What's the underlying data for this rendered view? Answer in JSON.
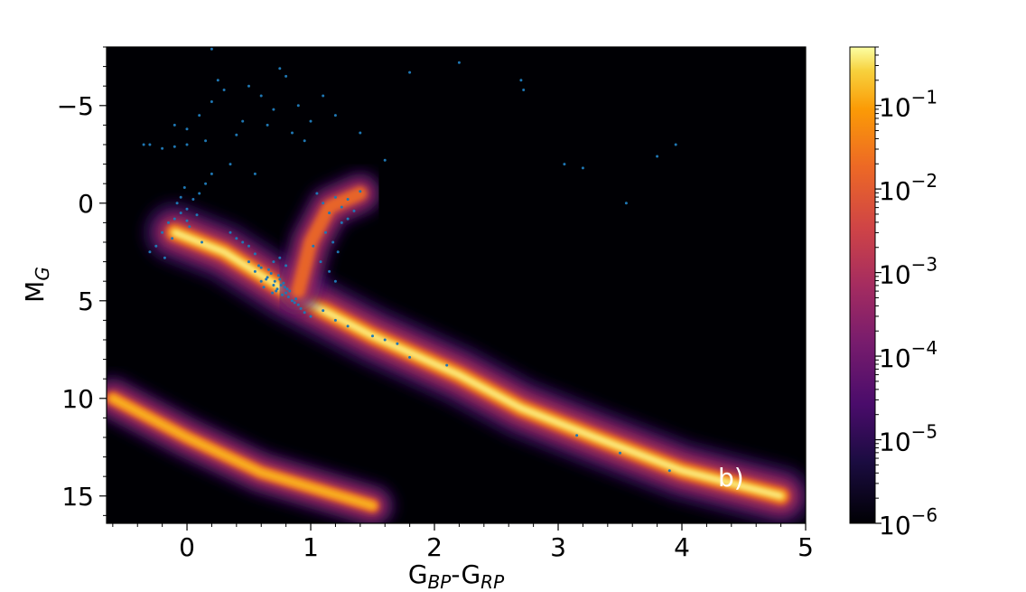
{
  "chart_data": {
    "type": "heatmap",
    "title": "",
    "xlabel": "G",
    "xlabel_subs": [
      "BP",
      "RP"
    ],
    "xlabel_sep": "-",
    "ylabel": "M",
    "ylabel_sub": "G",
    "xlim": [
      -0.65,
      5.0
    ],
    "ylim": [
      16.4,
      -8.0
    ],
    "y_inverted": true,
    "x_ticks": [
      0,
      1,
      2,
      3,
      4,
      5
    ],
    "x_tick_labels": [
      "0",
      "1",
      "2",
      "3",
      "4",
      "5"
    ],
    "y_ticks": [
      -5,
      0,
      5,
      10,
      15
    ],
    "y_tick_labels": [
      "−5",
      "0",
      "5",
      "10",
      "15"
    ],
    "panel_label": "b)",
    "colormap": "inferno",
    "background_color": "#000004",
    "overlay_color": "#1f77b4",
    "colorbar": {
      "scale": "log",
      "range": [
        1e-06,
        0.5
      ],
      "ticks": [
        {
          "value": 1e-06,
          "base": "10",
          "exp": "−6"
        },
        {
          "value": 1e-05,
          "base": "10",
          "exp": "−5"
        },
        {
          "value": 0.0001,
          "base": "10",
          "exp": "−4"
        },
        {
          "value": 0.001,
          "base": "10",
          "exp": "−3"
        },
        {
          "value": 0.01,
          "base": "10",
          "exp": "−2"
        },
        {
          "value": 0.1,
          "base": "10",
          "exp": "−1"
        }
      ]
    },
    "density_ridges": [
      {
        "name": "main-sequence",
        "points": [
          [
            -0.1,
            1.5
          ],
          [
            0.3,
            2.5
          ],
          [
            0.8,
            4.5
          ],
          [
            1.5,
            6.8
          ],
          [
            2.2,
            8.8
          ],
          [
            2.7,
            10.5
          ],
          [
            3.3,
            12.0
          ],
          [
            4.0,
            13.7
          ],
          [
            4.8,
            15.0
          ]
        ],
        "peak": 0.5
      },
      {
        "name": "giant-branch",
        "points": [
          [
            0.9,
            4.5
          ],
          [
            1.0,
            2.0
          ],
          [
            1.15,
            0.2
          ],
          [
            1.4,
            -0.5
          ]
        ],
        "peak": 0.01
      },
      {
        "name": "white-dwarf-sequence",
        "points": [
          [
            -0.6,
            10.0
          ],
          [
            0.0,
            12.0
          ],
          [
            0.6,
            13.8
          ],
          [
            1.5,
            15.5
          ]
        ],
        "peak": 0.03
      }
    ],
    "scatter_points": [
      [
        -0.05,
        0.5
      ],
      [
        -0.1,
        0.8
      ],
      [
        0.0,
        0.3
      ],
      [
        -0.15,
        1.0
      ],
      [
        0.05,
        -0.2
      ],
      [
        -0.2,
        1.5
      ],
      [
        0.1,
        -0.5
      ],
      [
        -0.08,
        0.0
      ],
      [
        0.02,
        1.2
      ],
      [
        -0.12,
        1.8
      ],
      [
        0.15,
        -1.0
      ],
      [
        -0.25,
        2.2
      ],
      [
        0.0,
        0.9
      ],
      [
        -0.05,
        -0.3
      ],
      [
        0.08,
        0.6
      ],
      [
        -0.3,
        2.5
      ],
      [
        0.2,
        -1.5
      ],
      [
        -0.18,
        2.8
      ],
      [
        0.12,
        2.0
      ],
      [
        -0.02,
        -0.8
      ],
      [
        0.5,
        3.0
      ],
      [
        0.55,
        3.5
      ],
      [
        0.6,
        4.0
      ],
      [
        0.65,
        3.8
      ],
      [
        0.7,
        4.2
      ],
      [
        0.72,
        4.5
      ],
      [
        0.75,
        3.9
      ],
      [
        0.78,
        4.1
      ],
      [
        0.8,
        4.6
      ],
      [
        0.68,
        3.6
      ],
      [
        0.62,
        4.3
      ],
      [
        0.58,
        3.2
      ],
      [
        0.82,
        4.8
      ],
      [
        0.85,
        5.0
      ],
      [
        0.88,
        4.9
      ],
      [
        0.9,
        5.2
      ],
      [
        0.73,
        4.4
      ],
      [
        0.77,
        4.7
      ],
      [
        0.66,
        3.4
      ],
      [
        0.71,
        4.0
      ],
      [
        0.74,
        3.7
      ],
      [
        0.79,
        4.3
      ],
      [
        0.83,
        4.5
      ],
      [
        0.6,
        3.3
      ],
      [
        0.64,
        3.9
      ],
      [
        0.69,
        4.6
      ],
      [
        0.76,
        4.2
      ],
      [
        0.81,
        4.4
      ],
      [
        0.87,
        5.1
      ],
      [
        0.92,
        5.4
      ],
      [
        0.95,
        5.6
      ],
      [
        1.0,
        5.8
      ],
      [
        0.7,
        3.0
      ],
      [
        0.75,
        2.8
      ],
      [
        0.8,
        3.2
      ],
      [
        0.55,
        2.6
      ],
      [
        0.5,
        2.2
      ],
      [
        0.45,
        2.0
      ],
      [
        0.4,
        1.8
      ],
      [
        0.35,
        1.5
      ],
      [
        1.05,
        -0.5
      ],
      [
        1.1,
        0.0
      ],
      [
        1.15,
        0.5
      ],
      [
        1.2,
        -0.3
      ],
      [
        1.25,
        0.2
      ],
      [
        1.3,
        0.8
      ],
      [
        1.12,
        1.5
      ],
      [
        1.18,
        2.0
      ],
      [
        1.22,
        2.5
      ],
      [
        1.08,
        3.0
      ],
      [
        1.15,
        3.5
      ],
      [
        1.2,
        4.0
      ],
      [
        1.25,
        1.0
      ],
      [
        1.3,
        -0.2
      ],
      [
        1.02,
        2.2
      ],
      [
        1.4,
        -0.6
      ],
      [
        1.35,
        0.4
      ],
      [
        1.1,
        5.5
      ],
      [
        1.2,
        6.0
      ],
      [
        1.3,
        6.3
      ],
      [
        1.5,
        6.8
      ],
      [
        1.6,
        7.0
      ],
      [
        1.8,
        7.9
      ],
      [
        2.1,
        8.3
      ],
      [
        3.15,
        11.9
      ],
      [
        3.5,
        12.8
      ],
      [
        3.9,
        13.7
      ],
      [
        1.7,
        7.2
      ],
      [
        0.1,
        -4.5
      ],
      [
        0.2,
        -5.2
      ],
      [
        0.3,
        -5.8
      ],
      [
        0.5,
        -6.0
      ],
      [
        0.6,
        -5.5
      ],
      [
        0.7,
        -4.8
      ],
      [
        0.8,
        -6.5
      ],
      [
        0.9,
        -5.0
      ],
      [
        1.0,
        -4.2
      ],
      [
        1.1,
        -5.5
      ],
      [
        0.0,
        -3.8
      ],
      [
        0.4,
        -3.5
      ],
      [
        0.65,
        -4.0
      ],
      [
        0.85,
        -3.6
      ],
      [
        1.2,
        -4.5
      ],
      [
        0.25,
        -6.3
      ],
      [
        0.45,
        -4.2
      ],
      [
        0.95,
        -3.2
      ],
      [
        -0.1,
        -4.0
      ],
      [
        0.15,
        -3.2
      ],
      [
        -0.3,
        -3.0
      ],
      [
        -0.35,
        -3.0
      ],
      [
        -0.2,
        -2.8
      ],
      [
        -0.1,
        -2.9
      ],
      [
        0.0,
        -3.0
      ],
      [
        0.2,
        -7.9
      ],
      [
        0.75,
        -6.9
      ],
      [
        1.8,
        -6.7
      ],
      [
        2.2,
        -7.2
      ],
      [
        2.7,
        -6.3
      ],
      [
        2.72,
        -5.8
      ],
      [
        3.95,
        -3.0
      ],
      [
        3.05,
        -2.0
      ],
      [
        3.2,
        -1.8
      ],
      [
        3.8,
        -2.4
      ],
      [
        3.55,
        0.0
      ],
      [
        1.4,
        -3.6
      ],
      [
        1.6,
        -2.2
      ],
      [
        0.35,
        -2.0
      ],
      [
        0.55,
        -1.5
      ]
    ]
  }
}
